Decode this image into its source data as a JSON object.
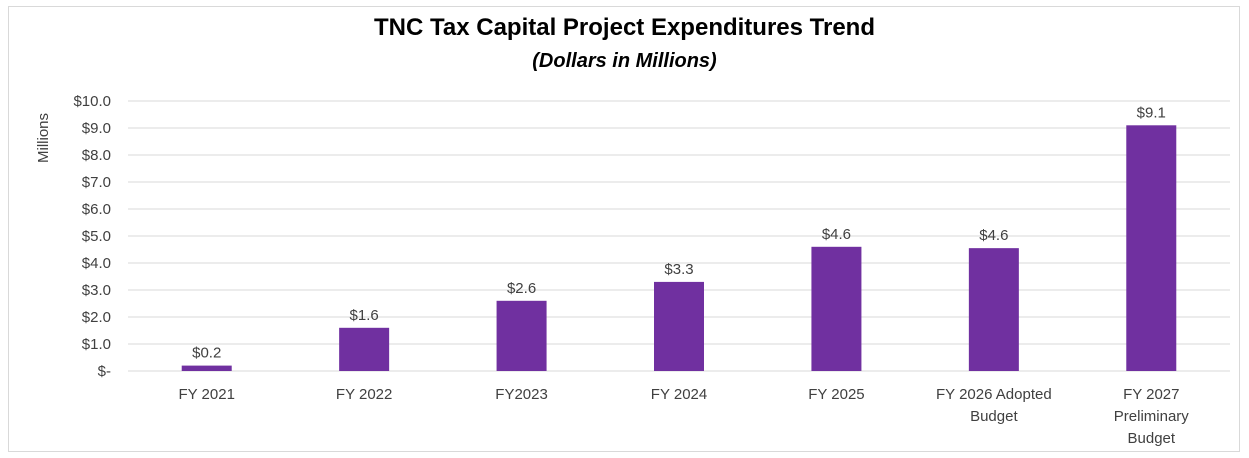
{
  "chart_data": {
    "type": "bar",
    "title": "TNC Tax Capital Project Expenditures Trend",
    "subtitle": "(Dollars in Millions)",
    "ylabel": "Millions",
    "xlabel": "",
    "ylim": [
      0,
      10
    ],
    "grid": true,
    "legend": "none",
    "bar_color": "#7030a0",
    "grid_color": "#d9d9d9",
    "y_ticks": [
      {
        "value": 0,
        "label": "$-"
      },
      {
        "value": 1,
        "label": "$1.0"
      },
      {
        "value": 2,
        "label": "$2.0"
      },
      {
        "value": 3,
        "label": "$3.0"
      },
      {
        "value": 4,
        "label": "$4.0"
      },
      {
        "value": 5,
        "label": "$5.0"
      },
      {
        "value": 6,
        "label": "$6.0"
      },
      {
        "value": 7,
        "label": "$7.0"
      },
      {
        "value": 8,
        "label": "$8.0"
      },
      {
        "value": 9,
        "label": "$9.0"
      },
      {
        "value": 10,
        "label": "$10.0"
      }
    ],
    "categories": [
      [
        "FY 2021"
      ],
      [
        "FY 2022"
      ],
      [
        "FY2023"
      ],
      [
        "FY 2024"
      ],
      [
        "FY 2025"
      ],
      [
        "FY 2026 Adopted",
        "Budget"
      ],
      [
        "FY 2027",
        "Preliminary",
        "Budget"
      ]
    ],
    "values": [
      0.2,
      1.6,
      2.6,
      3.3,
      4.6,
      4.55,
      9.1
    ],
    "data_labels": [
      "$0.2",
      "$1.6",
      "$2.6",
      "$3.3",
      "$4.6",
      "$4.6",
      "$9.1"
    ]
  }
}
